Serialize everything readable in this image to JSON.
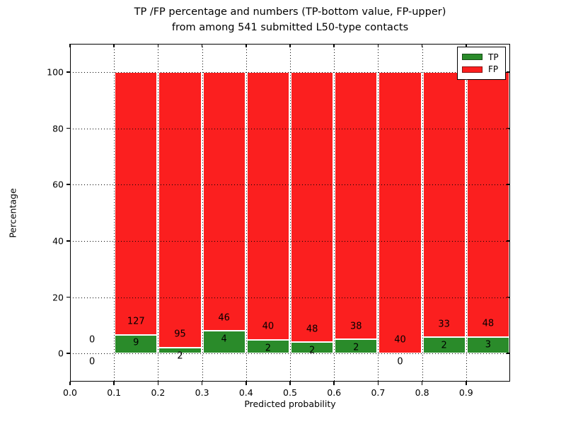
{
  "figure": {
    "title_lines": [
      "TP /FP percentage and numbers (TP-bottom value, FP-upper)",
      "from among 541 submitted L50-type contacts"
    ]
  },
  "chart_data": {
    "type": "bar",
    "stacked": true,
    "title": "TP /FP percentage and numbers (TP-bottom value, FP-upper)\nfrom among 541 submitted L50-type contacts",
    "xlabel": "Predicted probability",
    "ylabel": "Percentage",
    "xlim": [
      0.0,
      1.0
    ],
    "ylim": [
      -10,
      110
    ],
    "x_ticks": [
      0.0,
      0.1,
      0.2,
      0.3,
      0.4,
      0.5,
      0.6,
      0.7,
      0.8,
      0.9
    ],
    "x_tick_labels": [
      "0.0",
      "0.1",
      "0.2",
      "0.3",
      "0.4",
      "0.5",
      "0.6",
      "0.7",
      "0.8",
      "0.9"
    ],
    "y_ticks": [
      0,
      20,
      40,
      60,
      80,
      100
    ],
    "y_tick_labels": [
      "0",
      "20",
      "40",
      "60",
      "80",
      "100"
    ],
    "grid": true,
    "grid_style": "dotted",
    "legend": {
      "position": "upper right",
      "entries": [
        {
          "label": "TP",
          "color": "#2a8b2a"
        },
        {
          "label": "FP",
          "color": "#fb1f1f"
        }
      ]
    },
    "bins": [
      {
        "x_start": 0.0,
        "x_end": 0.1,
        "tp": 0,
        "fp": 0,
        "tp_pct": 0.0,
        "fp_pct": 0.0
      },
      {
        "x_start": 0.1,
        "x_end": 0.2,
        "tp": 9,
        "fp": 127,
        "tp_pct": 6.62,
        "fp_pct": 93.38
      },
      {
        "x_start": 0.2,
        "x_end": 0.3,
        "tp": 2,
        "fp": 95,
        "tp_pct": 2.06,
        "fp_pct": 97.94
      },
      {
        "x_start": 0.3,
        "x_end": 0.4,
        "tp": 4,
        "fp": 46,
        "tp_pct": 8.0,
        "fp_pct": 92.0
      },
      {
        "x_start": 0.4,
        "x_end": 0.5,
        "tp": 2,
        "fp": 40,
        "tp_pct": 4.76,
        "fp_pct": 95.24
      },
      {
        "x_start": 0.5,
        "x_end": 0.6,
        "tp": 2,
        "fp": 48,
        "tp_pct": 4.0,
        "fp_pct": 96.0
      },
      {
        "x_start": 0.6,
        "x_end": 0.7,
        "tp": 2,
        "fp": 38,
        "tp_pct": 5.0,
        "fp_pct": 95.0
      },
      {
        "x_start": 0.7,
        "x_end": 0.8,
        "tp": 0,
        "fp": 40,
        "tp_pct": 0.0,
        "fp_pct": 100.0
      },
      {
        "x_start": 0.8,
        "x_end": 0.9,
        "tp": 2,
        "fp": 33,
        "tp_pct": 5.71,
        "fp_pct": 94.29
      },
      {
        "x_start": 0.9,
        "x_end": 1.0,
        "tp": 3,
        "fp": 48,
        "tp_pct": 5.88,
        "fp_pct": 94.12
      }
    ],
    "total_contacts": 541
  },
  "colors": {
    "tp": "#2a8b2a",
    "fp": "#fb1f1f",
    "grid": "#000000",
    "background": "#ffffff",
    "bar_edge": "#ffffff"
  }
}
